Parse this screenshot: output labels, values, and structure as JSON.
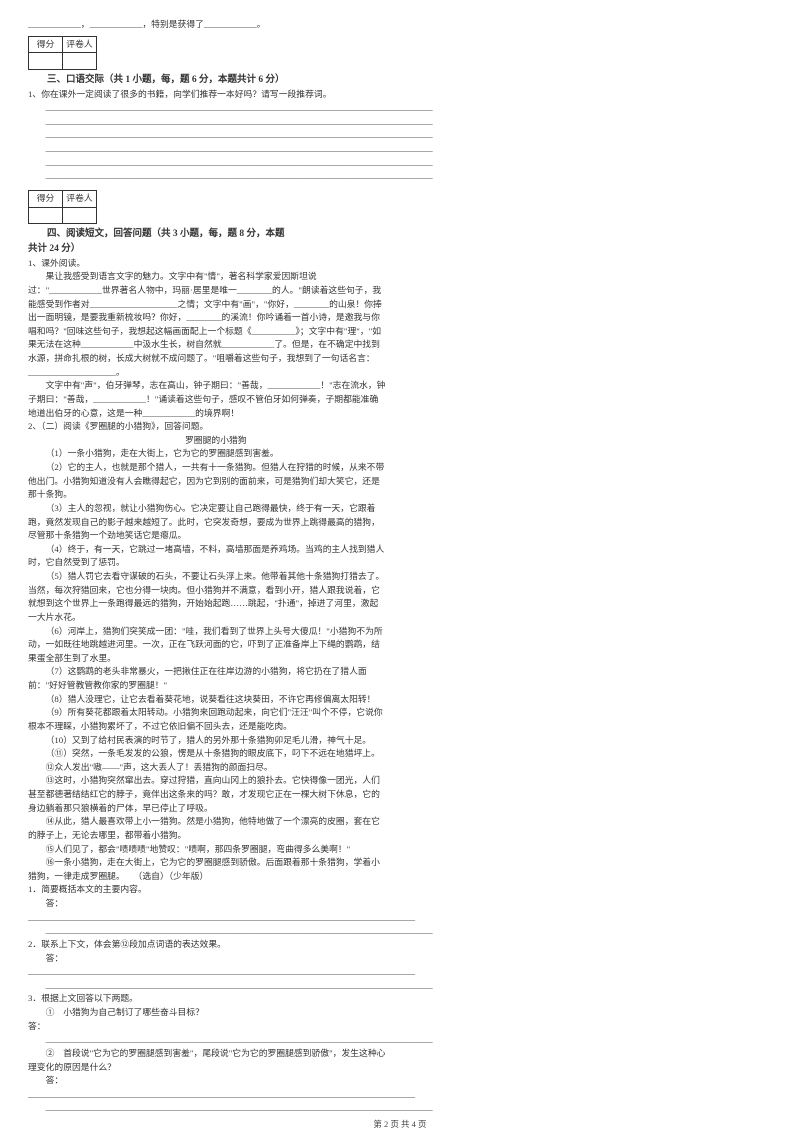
{
  "scorebox": {
    "c1": "得分",
    "c2": "评卷人"
  },
  "sec3": {
    "title": "三、口语交际（共 1 小题，每，题 6 分，本题共计 6 分）",
    "q1": "1、你在课外一定阅读了很多的书籍，向学们推荐一本好吗？请写一段推荐词。"
  },
  "sec4": {
    "title1": "四、阅读短文，回答问题（共 3 小题，每，题 8 分，本题",
    "title2": "共计 24 分）",
    "q1_head": "1、课外阅读。",
    "p1": "果让我感受到语言文字的魅力。文字中有\"情\"，著名科学家爱因斯坦说过：\"____________世界著名人物中，玛丽·居里是唯一________的人。\"朗读着这些句子，我能感受到作者对____________________之情；文字中有\"画\"，\"你好，________的山泉！你捧出一面明镜，是要我重新梳妆吗？你好，________的溪流！你吟诵着一首小诗，是邀我与你唱和吗？\"回味这些句子，我想起这幅画面配上一个标题《__________》；文字中有\"理\"，\"如果无法在这种____________中汲水生长，树自然就____________了。但是，在不确定中找到水源，拼命扎根的树，长成大树就不成问题了。\"咀嚼着这些句子，我想到了一句话名言：____________________。",
    "p2": "文字中有\"声\"，伯牙弹琴，志在高山，钟子期曰：\"善哉，____________！\"志在流水，钟子期曰：\"善哉，____________！\"诵读着这些句子，感叹不管伯牙如何弹奏，子期都能准确地道出伯牙的心意，这是一种____________的境界啊！",
    "q2_head": "2、（二）阅读《罗圈腿的小猎狗》，回答问题。",
    "story_title": "罗圈腿的小猎狗",
    "s1": "（1）一条小猎狗，走在大街上，它为它的罗圈腿感到害羞。",
    "s2": "（2）它的主人，也就是那个猎人，一共有十一条猎狗。但猎人在狩猎的时候，从来不带他出门。小猎狗知道没有人会瞧得起它，因为它到别的面前来，可是猎狗们却大笑它，还是那十条狗。",
    "s3": "（3）主人的忽视，就让小猎狗伤心。它决定要让自己跑得最快，终于有一天，它跟着跑，竟然发现自己的影子越来越短了。此时，它突发奇想，要成为世界上跳得最高的猎狗，尽管那十条猎狗一个劲地笑话它是瘪瓜。",
    "s4": "（4）终于，有一天，它跳过一堵高墙，不料，高墙那面是养鸡场。当鸡的主人找到猎人时，它自然受到了惩罚。",
    "s5": "（5）猎人罚它去看守谋破的石头，不要让石头浮上来。他带着其他十条猎狗打猎去了。当然，每次狩猎回来，它也分得一块肉。但小猎狗并不满意，看到小开，猎人跟我说着，它就想到这个世界上一条跑得最远的猎狗，开始始起跑……跳起，\"扑通\"，掉进了河里，激起一大片水花。",
    "s6": "（6）河岸上，猎狗们突笑成一团：\"哇，我们看到了世界上头号大傻瓜！\"小猎狗不为所动，一如既往地跳越进河里。一次，正在飞跃河面的它，吓到了正准备岸上下绳的鹦鹉，结果蛋全部生到了水里。",
    "s7": "（7）这鹦鹉的老头非常暴火，一把揪住正在往岸边游的小猎狗，将它扔在了猎人面前：\"好好管教管教你家的罗圈腿！\"",
    "s8": "（8）猎人没理它，让它去看着葵花地，说葵看往这块葵田，不许它再修偏离太阳转！",
    "s9": "（9）所有葵花都跟着太阳转动。小猎狗来回跑动起来，向它们\"汪汪\"叫个不停，它说你根本不理睬，小猎狗累坏了，不过它依旧偏不回头去，还是能吃肉。",
    "s10": "（10）又到了给村民表演的时节了，猎人的另外那十条猎狗卯足毛儿滑，神气十足。",
    "s11": "（⑪）突然，一条毛发发的公狼，愣是从十条猎狗的眼皮底下，叼下不远在地猎坪上。",
    "s12": "⑫众人发出\"嗷——\"声，这大丢人了！丢猎狗的颜面扫尽。",
    "s13": "⑬这时，小猎狗突然窜出去。穿过狩猎，直向山冈上的狼扑去。它快得像一团光，人们甚至都德著结结红它的脖子，竟伴出这条来的吗？敢，才发现它正在一棵大树下休息，它的身边躺着那只狼横着的尸体，早已停止了呼吸。",
    "s14": "⑭从此，猎人最喜欢带上小一猎狗。然是小猎狗，他特地做了一个漂亮的皮圈，套在它的脖子上，无论去哪里，都带着小猎狗。",
    "s15": "⑮人们见了，都会\"啧啧啧\"地赞叹：\"啧啊，那四条罗圈腿，弯曲得多么美啊！\"",
    "s16": "⑯一条小猎狗，走在大街上，它为它的罗圈腿感到骄傲。后面跟着那十条猎狗，学着小猎狗，一律走成罗圈腿。　　（选自）（少年版）",
    "qq1": "1．简要概括本文的主要内容。",
    "ans": "答：________________________________________________________________________________________",
    "qq2": "2．联系上下文，体会第⑫段加点词语的表达效果。",
    "qq3": "3．根据上文回答以下两题。",
    "qq3a": "①　小猎狗为自己制订了哪些奋斗目标？",
    "qq3b": "②　首段说\"它为它的罗圈腿感到害羞\"，尾段说\"它为它的罗圈腿感到骄傲\"，发生这种心理变化的原因是什么？"
  },
  "fill_line": "________________________________________________________________________________________",
  "half_line": "________________________________________",
  "topline": "____________，____________，特别是获得了____________。",
  "pgnum": "第 2 页 共 4 页"
}
